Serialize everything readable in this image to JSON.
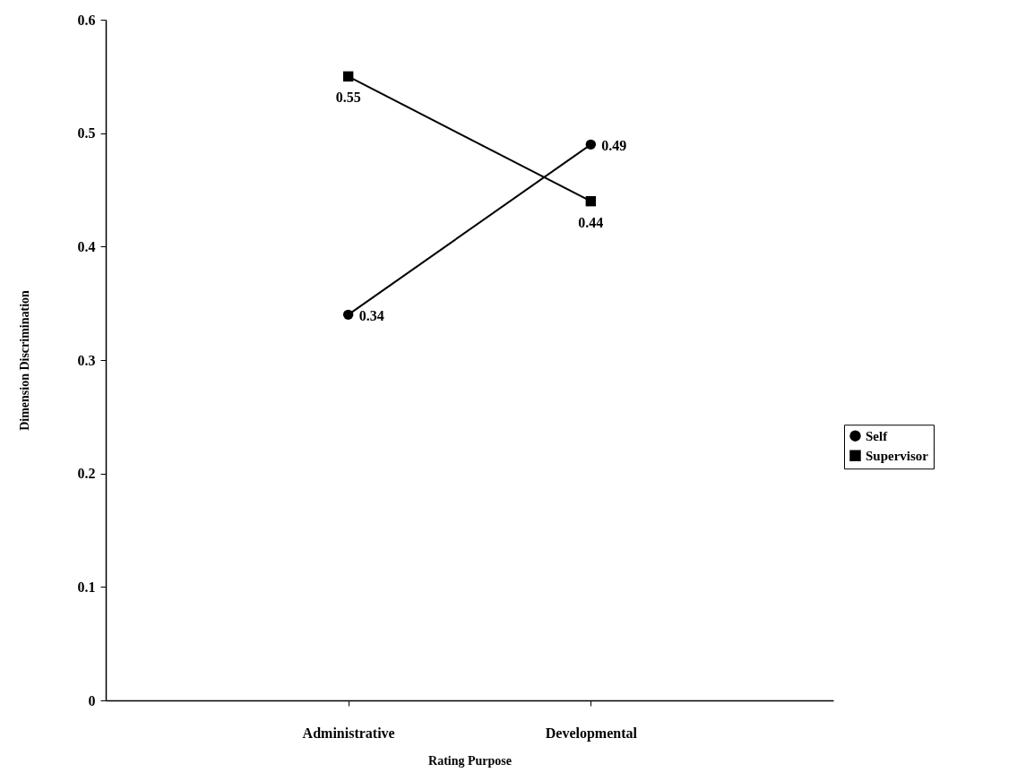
{
  "chart_data": {
    "type": "line",
    "xlabel": "Rating Purpose",
    "ylabel": "Dimension Discrimination",
    "categories": [
      "Administrative",
      "Developmental"
    ],
    "series": [
      {
        "name": "Self",
        "color": "#000000",
        "marker": "circle",
        "values": [
          0.34,
          0.49
        ]
      },
      {
        "name": "Supervisor",
        "color": "#000000",
        "marker": "square",
        "values": [
          0.55,
          0.44
        ]
      }
    ],
    "ylim": [
      0,
      0.6
    ],
    "yticks": [
      0,
      0.1,
      0.2,
      0.3,
      0.4,
      0.5,
      0.6
    ],
    "data_labels": true,
    "legend": "right",
    "grid": false,
    "line_style": "solid"
  }
}
